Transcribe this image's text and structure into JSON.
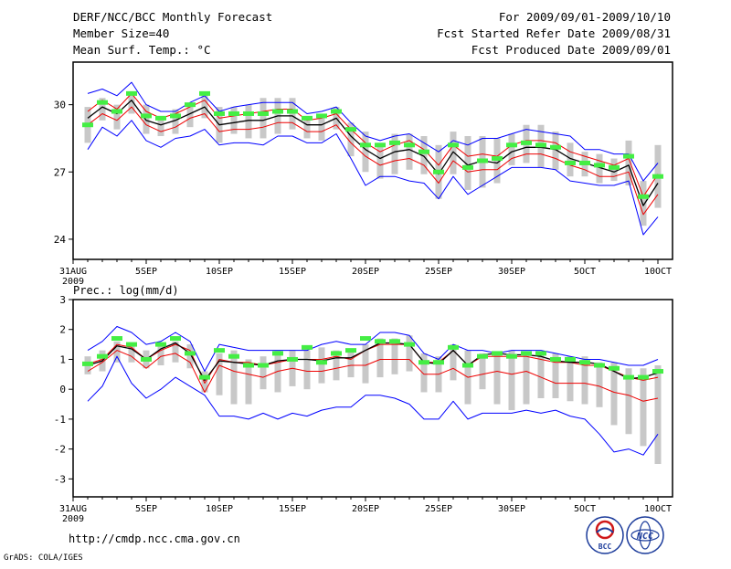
{
  "header": {
    "title": "DERF/NCC/BCC Monthly Forecast",
    "member_size": "Member Size=40",
    "variable": "Mean Surf. Temp.: °C",
    "period": "For 2009/09/01-2009/10/10",
    "refer_date": "Fcst Started Refer Date 2009/08/31",
    "produced_date": "Fcst Produced Date 2009/09/01"
  },
  "footer": {
    "url": "http://cmdp.ncc.cma.gov.cn",
    "grads": "GrADS: COLA/IGES",
    "logo_bcc": "BCC",
    "logo_ncc": "NCC"
  },
  "x_axis": {
    "ticks": [
      {
        "day": 0,
        "label": "31AUG"
      },
      {
        "day": 5,
        "label": "5SEP"
      },
      {
        "day": 10,
        "label": "10SEP"
      },
      {
        "day": 15,
        "label": "15SEP"
      },
      {
        "day": 20,
        "label": "20SEP"
      },
      {
        "day": 25,
        "label": "25SEP"
      },
      {
        "day": 30,
        "label": "30SEP"
      },
      {
        "day": 35,
        "label": "5OCT"
      },
      {
        "day": 40,
        "label": "10OCT"
      }
    ],
    "year": "2009"
  },
  "colors": {
    "envelope": "#0000ff",
    "spread": "#ee0000",
    "mean": "#000000",
    "box": "#c8c8c8",
    "obs": "#44ee44"
  },
  "chart_data": [
    {
      "type": "line",
      "title": "Mean Surf. Temp.: °C",
      "xlabel": "",
      "ylabel": "°C",
      "xlim": [
        0,
        40
      ],
      "ylim": [
        23.1,
        31.9
      ],
      "yticks": [
        24,
        27,
        30
      ],
      "x": [
        1,
        2,
        3,
        4,
        5,
        6,
        7,
        8,
        9,
        10,
        11,
        12,
        13,
        14,
        15,
        16,
        17,
        18,
        19,
        20,
        21,
        22,
        23,
        24,
        25,
        26,
        27,
        28,
        29,
        30,
        31,
        32,
        33,
        34,
        35,
        36,
        37,
        38,
        39,
        40
      ],
      "series": [
        {
          "name": "Max member",
          "values": [
            30.5,
            30.7,
            30.4,
            31,
            30,
            29.7,
            29.7,
            30.1,
            30.4,
            29.7,
            29.9,
            30,
            30.1,
            30.1,
            30.1,
            29.6,
            29.7,
            29.9,
            29.2,
            28.6,
            28.4,
            28.6,
            28.7,
            28.3,
            27.9,
            28.4,
            28.2,
            28.5,
            28.5,
            28.7,
            28.9,
            28.8,
            28.7,
            28.6,
            28,
            28,
            27.8,
            27.8,
            26.6,
            27.4
          ]
        },
        {
          "name": "Mean + spread",
          "values": [
            29.7,
            30.2,
            29.8,
            30.5,
            29.7,
            29.4,
            29.6,
            29.9,
            30.2,
            29.4,
            29.5,
            29.6,
            29.7,
            29.8,
            29.8,
            29.3,
            29.4,
            29.6,
            28.9,
            28.3,
            27.9,
            28.2,
            28.4,
            28,
            27.3,
            28.2,
            27.7,
            27.8,
            27.7,
            28.2,
            28.4,
            28.4,
            28.3,
            27.9,
            27.7,
            27.5,
            27.3,
            27.6,
            25.9,
            26.9
          ]
        },
        {
          "name": "Ensemble mean",
          "values": [
            29.4,
            29.9,
            29.6,
            30.2,
            29.3,
            29.1,
            29.3,
            29.6,
            29.9,
            29.1,
            29.2,
            29.3,
            29.3,
            29.5,
            29.5,
            29.1,
            29.1,
            29.4,
            28.6,
            28,
            27.6,
            27.9,
            28,
            27.7,
            26.9,
            27.9,
            27.3,
            27.5,
            27.4,
            27.9,
            28.1,
            28.1,
            28,
            27.6,
            27.4,
            27.2,
            27,
            27.3,
            25.5,
            26.5
          ]
        },
        {
          "name": "Mean - spread",
          "values": [
            29.1,
            29.6,
            29.3,
            29.9,
            29.1,
            28.8,
            29,
            29.4,
            29.6,
            28.8,
            28.9,
            28.9,
            29,
            29.2,
            29.2,
            28.8,
            28.8,
            29.1,
            28.3,
            27.7,
            27.3,
            27.5,
            27.6,
            27.3,
            26.5,
            27.5,
            27,
            27.1,
            27.1,
            27.6,
            27.8,
            27.8,
            27.6,
            27.3,
            27.1,
            26.8,
            26.8,
            27,
            25.1,
            26
          ]
        },
        {
          "name": "Min member",
          "values": [
            28,
            29,
            28.6,
            29.3,
            28.4,
            28.1,
            28.5,
            28.6,
            28.9,
            28.2,
            28.3,
            28.3,
            28.2,
            28.6,
            28.6,
            28.3,
            28.3,
            28.7,
            27.6,
            26.4,
            26.8,
            26.8,
            26.6,
            26.5,
            25.8,
            26.8,
            26,
            26.4,
            26.8,
            27.2,
            27.2,
            27.2,
            27.1,
            26.6,
            26.5,
            26.4,
            26.4,
            26.6,
            24.2,
            25
          ]
        }
      ],
      "boxes": {
        "low": [
          28.3,
          29.3,
          28.9,
          29.6,
          28.7,
          28.6,
          28.7,
          29,
          29.4,
          28.3,
          28.7,
          28.5,
          28.5,
          28.7,
          28.9,
          28.5,
          28.4,
          28.9,
          27.7,
          27,
          26.7,
          26.9,
          27.1,
          26.9,
          25.8,
          26.9,
          26.2,
          26.3,
          26.5,
          27.3,
          27.4,
          27.2,
          27.1,
          26.8,
          26.8,
          26.5,
          26.6,
          26.4,
          24.6,
          25.4
        ],
        "high": [
          29.9,
          30.3,
          30,
          30.6,
          30,
          29.5,
          29.8,
          30,
          30.5,
          29.9,
          29.9,
          30,
          30.3,
          30.3,
          30.3,
          29.5,
          29.5,
          29.9,
          29.2,
          28.8,
          28.3,
          28.7,
          28.7,
          28.6,
          28.2,
          28.8,
          28.6,
          28.6,
          28.5,
          28.7,
          29.1,
          29.1,
          28.8,
          28.3,
          27.9,
          27.8,
          27.6,
          28.4,
          26.6,
          28.2
        ]
      },
      "markers": [
        29.1,
        30.1,
        29.7,
        30.5,
        29.5,
        29.4,
        29.5,
        30,
        30.5,
        29.6,
        29.6,
        29.6,
        29.6,
        29.7,
        29.7,
        29.4,
        29.5,
        29.7,
        28.9,
        28.2,
        28.2,
        28.3,
        28.2,
        27.9,
        27,
        28.2,
        27.2,
        27.5,
        27.6,
        28.2,
        28.3,
        28.2,
        28.1,
        27.4,
        27.4,
        27.3,
        27.2,
        27.7,
        25.9,
        26.8
      ]
    },
    {
      "type": "line",
      "title": "Prec.: log(mm/d)",
      "xlabel": "",
      "ylabel": "log(mm/d)",
      "xlim": [
        0,
        40
      ],
      "ylim": [
        -3.6,
        3
      ],
      "yticks": [
        -3,
        -2,
        -1,
        0,
        1,
        2,
        3
      ],
      "x": [
        1,
        2,
        3,
        4,
        5,
        6,
        7,
        8,
        9,
        10,
        11,
        12,
        13,
        14,
        15,
        16,
        17,
        18,
        19,
        20,
        21,
        22,
        23,
        24,
        25,
        26,
        27,
        28,
        29,
        30,
        31,
        32,
        33,
        34,
        35,
        36,
        37,
        38,
        39,
        40
      ],
      "series": [
        {
          "name": "Max member",
          "values": [
            1.3,
            1.6,
            2.1,
            1.9,
            1.5,
            1.6,
            1.9,
            1.6,
            0.6,
            1.5,
            1.4,
            1.3,
            1.3,
            1.3,
            1.3,
            1.3,
            1.5,
            1.6,
            1.5,
            1.5,
            1.9,
            1.9,
            1.8,
            1.2,
            1,
            1.5,
            1.3,
            1.3,
            1.2,
            1.3,
            1.3,
            1.3,
            1.2,
            1.1,
            1,
            1,
            0.9,
            0.8,
            0.8,
            1
          ]
        },
        {
          "name": "Mean + spread",
          "values": [
            0.85,
            1,
            1.5,
            1.4,
            1,
            1.3,
            1.5,
            1.3,
            0.2,
            1,
            0.9,
            0.9,
            0.8,
            0.9,
            1,
            1,
            1,
            1.1,
            1,
            1.3,
            1.5,
            1.5,
            1.5,
            0.9,
            0.9,
            1.3,
            0.8,
            1.1,
            1.1,
            1.1,
            1.1,
            1,
            0.9,
            0.9,
            0.8,
            0.8,
            0.6,
            0.4,
            0.3,
            0.4
          ]
        },
        {
          "name": "Ensemble mean",
          "values": [
            0.8,
            0.95,
            1.45,
            1.35,
            1,
            1.35,
            1.55,
            1.2,
            0.3,
            0.95,
            0.9,
            0.85,
            0.8,
            0.95,
            1,
            1,
            0.95,
            1.05,
            1.05,
            1.3,
            1.55,
            1.55,
            1.5,
            0.9,
            0.85,
            1.3,
            0.8,
            1.15,
            1.2,
            1.15,
            1.15,
            1.1,
            0.95,
            0.9,
            0.9,
            0.85,
            0.6,
            0.35,
            0.4,
            0.55
          ]
        },
        {
          "name": "Mean - spread",
          "values": [
            0.6,
            0.9,
            1.3,
            1.1,
            0.7,
            1.1,
            1.2,
            0.9,
            -0.1,
            0.8,
            0.6,
            0.5,
            0.4,
            0.6,
            0.7,
            0.6,
            0.6,
            0.7,
            0.8,
            0.8,
            1,
            1,
            1,
            0.5,
            0.5,
            0.7,
            0.4,
            0.5,
            0.6,
            0.5,
            0.6,
            0.4,
            0.2,
            0.2,
            0.2,
            0.1,
            -0.1,
            -0.2,
            -0.4,
            -0.3
          ]
        },
        {
          "name": "Min member",
          "values": [
            -0.4,
            0.1,
            1.1,
            0.2,
            -0.3,
            0,
            0.4,
            0.1,
            -0.2,
            -0.9,
            -0.9,
            -1,
            -0.8,
            -1,
            -0.8,
            -0.9,
            -0.7,
            -0.6,
            -0.6,
            -0.2,
            -0.2,
            -0.3,
            -0.5,
            -1,
            -1,
            -0.4,
            -1,
            -0.8,
            -0.8,
            -0.8,
            -0.7,
            -0.8,
            -0.7,
            -0.9,
            -1,
            -1.5,
            -2.1,
            -2,
            -2.2,
            -1.5
          ]
        }
      ],
      "boxes": {
        "low": [
          0.5,
          0.6,
          0.9,
          0.9,
          0.7,
          0.8,
          0.9,
          0.7,
          -0.1,
          -0.2,
          -0.5,
          -0.5,
          0,
          -0.1,
          0.1,
          0,
          0.2,
          0.3,
          0.4,
          0.2,
          0.4,
          0.5,
          0.6,
          -0.1,
          -0.1,
          0.3,
          -0.5,
          0,
          -0.5,
          -0.7,
          -0.5,
          -0.3,
          -0.3,
          -0.4,
          -0.5,
          -0.6,
          -1.2,
          -1.5,
          -1.9,
          -2.5
        ],
        "high": [
          1.1,
          1.3,
          1.6,
          1.5,
          1.3,
          1.5,
          1.6,
          1.5,
          0.6,
          1.2,
          1.3,
          1,
          1.1,
          1.3,
          1.3,
          1.3,
          1.4,
          1.3,
          1.3,
          1.5,
          1.7,
          1.7,
          1.8,
          1.2,
          1.1,
          1.5,
          1.3,
          1.2,
          1.2,
          1.3,
          1.2,
          1.2,
          1.2,
          1.1,
          1.1,
          0.9,
          0.9,
          0.7,
          0.7,
          0.8
        ]
      },
      "markers": [
        0.85,
        1.1,
        1.7,
        1.5,
        1,
        1.5,
        1.7,
        1.2,
        0.4,
        1.3,
        1.1,
        0.8,
        0.8,
        1.2,
        1,
        1.4,
        0.9,
        1.2,
        1.3,
        1.7,
        1.6,
        1.6,
        1.5,
        0.9,
        0.9,
        1.4,
        0.8,
        1.1,
        1.2,
        1.1,
        1.2,
        1.2,
        1,
        1,
        0.9,
        0.8,
        0.7,
        0.4,
        0.4,
        0.6
      ]
    }
  ]
}
